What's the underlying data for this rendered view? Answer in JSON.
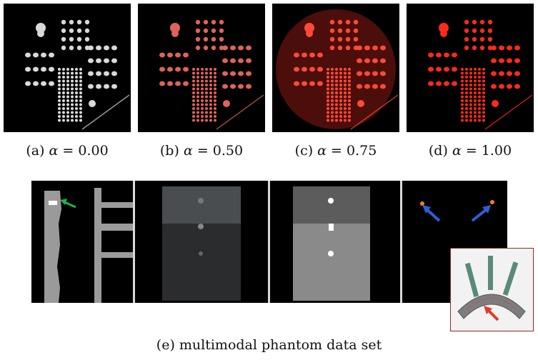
{
  "figure": {
    "panels": [
      {
        "id": "a",
        "label": "(a)",
        "symbol": "α",
        "eq": " = 0.00",
        "tint": "#d9d9d9",
        "glow": "none"
      },
      {
        "id": "b",
        "label": "(b)",
        "symbol": "α",
        "eq": " = 0.50",
        "tint": "#e0625a",
        "glow": "none"
      },
      {
        "id": "c",
        "label": "(c)",
        "symbol": "α",
        "eq": " = 0.75",
        "tint": "#ff4a38",
        "glow": "#8a1a12"
      },
      {
        "id": "d",
        "label": "(d)",
        "symbol": "α",
        "eq": " = 1.00",
        "tint": "#ff2a1a",
        "glow": "none"
      }
    ],
    "bottom_caption": "(e) multimodal phantom data set",
    "arrow_colors": {
      "green": "#22b14c",
      "blue": "#2f5fd6",
      "red": "#e23a2a"
    }
  }
}
